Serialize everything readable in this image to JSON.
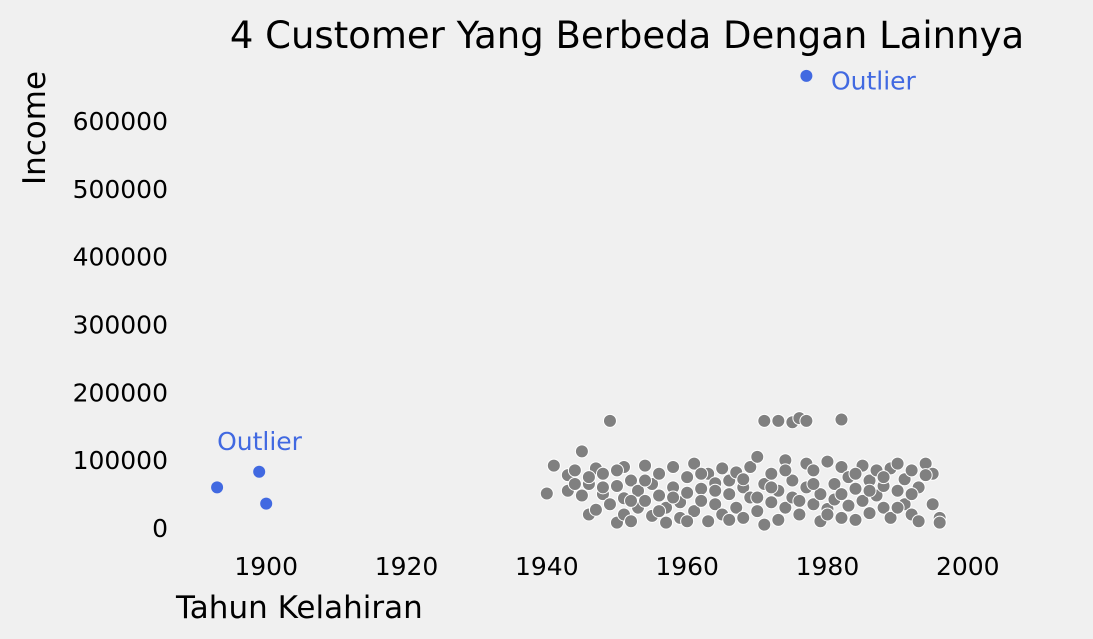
{
  "chart_data": {
    "type": "scatter",
    "title": "4 Customer Yang Berbeda Dengan Lainnya",
    "xlabel": "Tahun Kelahiran",
    "ylabel": "Income",
    "xlim": [
      1887,
      2016
    ],
    "ylim": [
      -25000,
      690000
    ],
    "xticks": [
      1900,
      1920,
      1940,
      1960,
      1980,
      2000
    ],
    "yticks": [
      0,
      100000,
      200000,
      300000,
      400000,
      500000,
      600000
    ],
    "grid": false,
    "colors": {
      "background": "#f0f0f0",
      "regular": "#808080",
      "outlier": "#4169e1"
    },
    "annotations": [
      {
        "text": "Outlier",
        "x": 1980.5,
        "y": 660000
      },
      {
        "text": "Outlier",
        "x": 1893,
        "y": 128000
      }
    ],
    "series": [
      {
        "role": "outlier",
        "points": [
          [
            1977,
            666666
          ],
          [
            1893,
            60000
          ],
          [
            1899,
            83000
          ],
          [
            1900,
            36000
          ]
        ]
      },
      {
        "role": "regular",
        "points": [
          [
            1940,
            51000
          ],
          [
            1941,
            92000
          ],
          [
            1943,
            55000
          ],
          [
            1943,
            78000
          ],
          [
            1944,
            65000
          ],
          [
            1945,
            113000
          ],
          [
            1945,
            48000
          ],
          [
            1946,
            20000
          ],
          [
            1946,
            65000
          ],
          [
            1947,
            27000
          ],
          [
            1947,
            88000
          ],
          [
            1948,
            50000
          ],
          [
            1948,
            80000
          ],
          [
            1949,
            158000
          ],
          [
            1949,
            35000
          ],
          [
            1950,
            62000
          ],
          [
            1950,
            8000
          ],
          [
            1951,
            90000
          ],
          [
            1951,
            44000
          ],
          [
            1951,
            20000
          ],
          [
            1952,
            70000
          ],
          [
            1952,
            10000
          ],
          [
            1953,
            55000
          ],
          [
            1953,
            30000
          ],
          [
            1954,
            92000
          ],
          [
            1954,
            40000
          ],
          [
            1955,
            65000
          ],
          [
            1955,
            18000
          ],
          [
            1956,
            80000
          ],
          [
            1956,
            48000
          ],
          [
            1957,
            30000
          ],
          [
            1957,
            8000
          ],
          [
            1958,
            60000
          ],
          [
            1958,
            90000
          ],
          [
            1959,
            38000
          ],
          [
            1959,
            15000
          ],
          [
            1960,
            75000
          ],
          [
            1960,
            52000
          ],
          [
            1961,
            95000
          ],
          [
            1961,
            25000
          ],
          [
            1962,
            58000
          ],
          [
            1962,
            40000
          ],
          [
            1963,
            80000
          ],
          [
            1963,
            10000
          ],
          [
            1964,
            66000
          ],
          [
            1964,
            35000
          ],
          [
            1965,
            88000
          ],
          [
            1965,
            20000
          ],
          [
            1966,
            50000
          ],
          [
            1966,
            70000
          ],
          [
            1967,
            30000
          ],
          [
            1967,
            82000
          ],
          [
            1968,
            60000
          ],
          [
            1968,
            15000
          ],
          [
            1969,
            90000
          ],
          [
            1969,
            45000
          ],
          [
            1970,
            105000
          ],
          [
            1970,
            25000
          ],
          [
            1971,
            158000
          ],
          [
            1971,
            65000
          ],
          [
            1971,
            5000
          ],
          [
            1972,
            80000
          ],
          [
            1972,
            38000
          ],
          [
            1973,
            158000
          ],
          [
            1973,
            55000
          ],
          [
            1973,
            12000
          ],
          [
            1974,
            100000
          ],
          [
            1974,
            30000
          ],
          [
            1975,
            156000
          ],
          [
            1975,
            70000
          ],
          [
            1975,
            45000
          ],
          [
            1976,
            162000
          ],
          [
            1976,
            20000
          ],
          [
            1977,
            158000
          ],
          [
            1977,
            95000
          ],
          [
            1977,
            60000
          ],
          [
            1978,
            85000
          ],
          [
            1978,
            35000
          ],
          [
            1979,
            50000
          ],
          [
            1979,
            10000
          ],
          [
            1980,
            98000
          ],
          [
            1980,
            28000
          ],
          [
            1981,
            65000
          ],
          [
            1981,
            42000
          ],
          [
            1982,
            160000
          ],
          [
            1982,
            90000
          ],
          [
            1982,
            15000
          ],
          [
            1983,
            75000
          ],
          [
            1983,
            33000
          ],
          [
            1984,
            58000
          ],
          [
            1984,
            12000
          ],
          [
            1985,
            92000
          ],
          [
            1985,
            40000
          ],
          [
            1986,
            70000
          ],
          [
            1986,
            22000
          ],
          [
            1987,
            85000
          ],
          [
            1987,
            48000
          ],
          [
            1988,
            30000
          ],
          [
            1988,
            62000
          ],
          [
            1989,
            88000
          ],
          [
            1989,
            15000
          ],
          [
            1990,
            55000
          ],
          [
            1990,
            95000
          ],
          [
            1991,
            35000
          ],
          [
            1991,
            72000
          ],
          [
            1992,
            20000
          ],
          [
            1992,
            85000
          ],
          [
            1993,
            60000
          ],
          [
            1993,
            10000
          ],
          [
            1994,
            95000
          ],
          [
            1995,
            80000
          ],
          [
            1995,
            35000
          ],
          [
            1996,
            15000
          ],
          [
            1996,
            8000
          ],
          [
            1944,
            85000
          ],
          [
            1946,
            75000
          ],
          [
            1948,
            60000
          ],
          [
            1950,
            85000
          ],
          [
            1952,
            40000
          ],
          [
            1954,
            70000
          ],
          [
            1956,
            25000
          ],
          [
            1958,
            45000
          ],
          [
            1960,
            10000
          ],
          [
            1962,
            80000
          ],
          [
            1964,
            55000
          ],
          [
            1966,
            12000
          ],
          [
            1968,
            72000
          ],
          [
            1970,
            45000
          ],
          [
            1972,
            60000
          ],
          [
            1974,
            85000
          ],
          [
            1976,
            40000
          ],
          [
            1978,
            65000
          ],
          [
            1980,
            20000
          ],
          [
            1982,
            50000
          ],
          [
            1984,
            80000
          ],
          [
            1986,
            55000
          ],
          [
            1988,
            75000
          ],
          [
            1990,
            30000
          ],
          [
            1992,
            50000
          ],
          [
            1994,
            78000
          ]
        ]
      }
    ]
  }
}
